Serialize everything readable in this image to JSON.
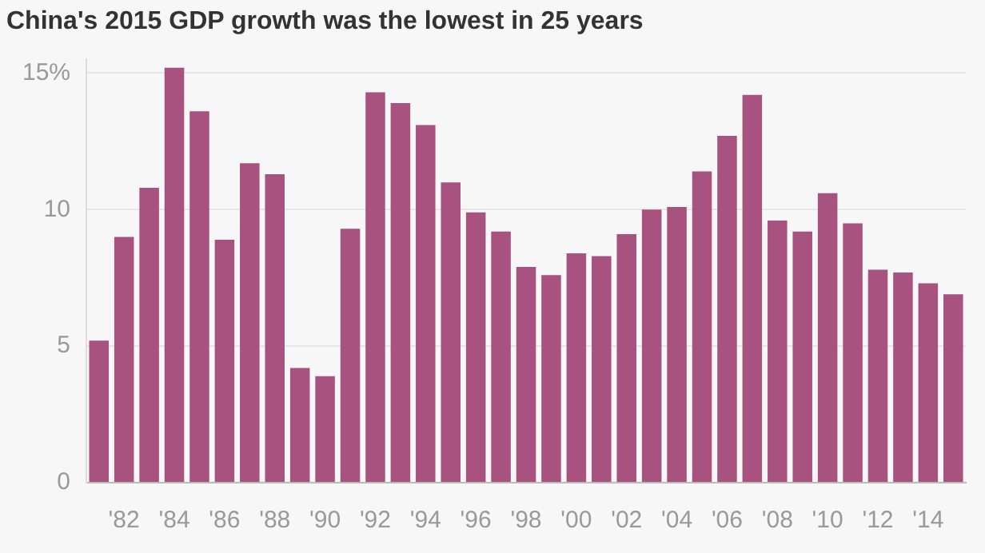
{
  "chart_data": {
    "type": "bar",
    "title": "China's 2015 GDP growth was the lowest in 25 years",
    "categories": [
      null,
      "'82",
      null,
      "'84",
      null,
      "'86",
      null,
      "'88",
      null,
      "'90",
      null,
      "'92",
      null,
      "'94",
      null,
      "'96",
      null,
      "'98",
      null,
      "'00",
      null,
      "'02",
      null,
      "'04",
      null,
      "'06",
      null,
      "'08",
      null,
      "'10",
      null,
      "'12",
      null,
      "'14",
      null
    ],
    "values": [
      5.2,
      9.0,
      10.8,
      15.2,
      13.6,
      8.9,
      11.7,
      11.3,
      4.2,
      3.9,
      9.3,
      14.3,
      13.9,
      13.1,
      11.0,
      9.9,
      9.2,
      7.9,
      7.6,
      8.4,
      8.3,
      9.1,
      10.0,
      10.1,
      11.4,
      12.7,
      14.2,
      9.6,
      9.2,
      10.6,
      9.5,
      7.8,
      7.7,
      7.3,
      6.9
    ],
    "color": "#a8527f",
    "ylim": [
      0,
      15.5
    ],
    "yticks": [
      0,
      5,
      10,
      {
        "value": 15,
        "label": "15%"
      }
    ],
    "grid": "y",
    "legend": false
  }
}
